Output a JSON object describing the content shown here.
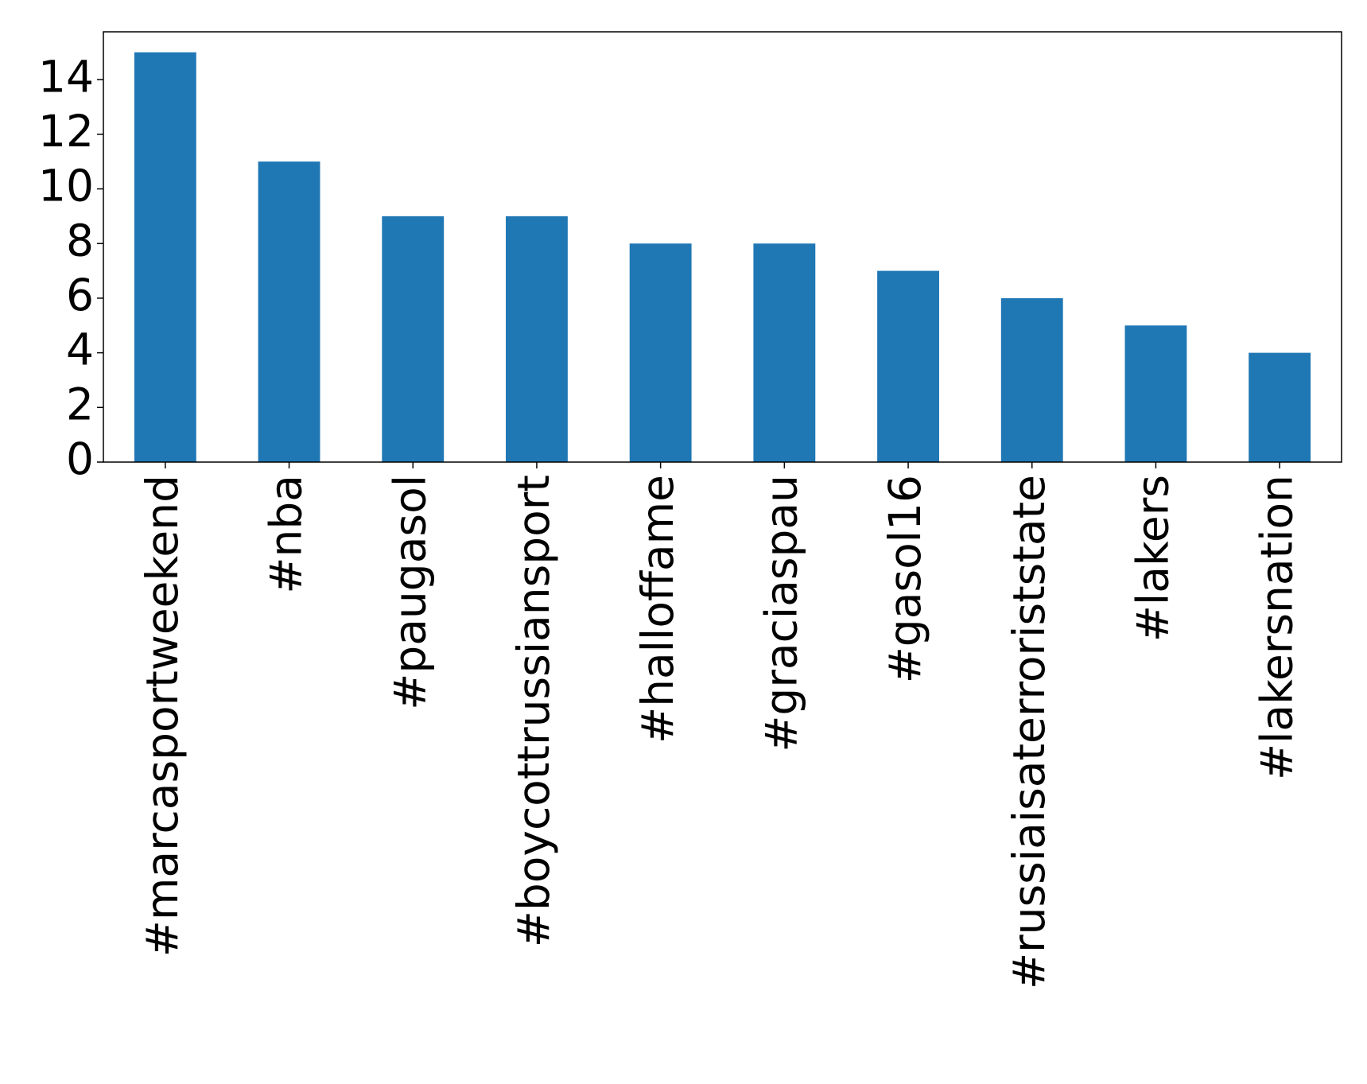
{
  "chart_data": {
    "type": "bar",
    "categories": [
      "#marcasportweekend",
      "#nba",
      "#paugasol",
      "#boycottrussiansport",
      "#halloffame",
      "#graciaspau",
      "#gasol16",
      "#russiaisaterroriststate",
      "#lakers",
      "#lakersnation"
    ],
    "values": [
      15,
      11,
      9,
      9,
      8,
      8,
      7,
      6,
      5,
      4
    ],
    "color": "#1f77b4",
    "ylim": [
      0,
      15.75
    ],
    "yticks": [
      0,
      2,
      4,
      6,
      8,
      10,
      12,
      14
    ],
    "grid": false
  }
}
